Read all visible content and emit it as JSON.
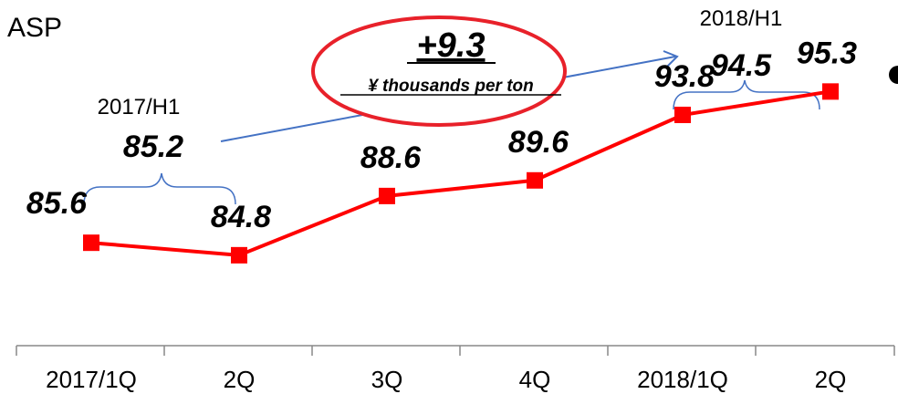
{
  "chart_data": {
    "type": "line",
    "title": "ASP",
    "categories": [
      "2017/1Q",
      "2Q",
      "3Q",
      "4Q",
      "2018/1Q",
      "2Q"
    ],
    "series": [
      {
        "values": [
          85.6,
          84.8,
          88.6,
          89.6,
          93.8,
          95.3
        ],
        "color": "#ff0000",
        "marker": "square"
      }
    ],
    "data_labels": [
      "85.6",
      "84.8",
      "88.6",
      "89.6",
      "93.8",
      "95.3"
    ],
    "ylim": [
      79,
      100
    ],
    "grid": false,
    "annotations": {
      "h1_2017": {
        "period": "2017/H1",
        "value": "85.2"
      },
      "h1_2018": {
        "period": "2018/H1",
        "value": "94.5"
      },
      "increase": {
        "value": "+9.3",
        "unit": "¥ thousands per ton",
        "ring_color": "#e8212a",
        "arrow_color": "#4472c4"
      }
    }
  }
}
